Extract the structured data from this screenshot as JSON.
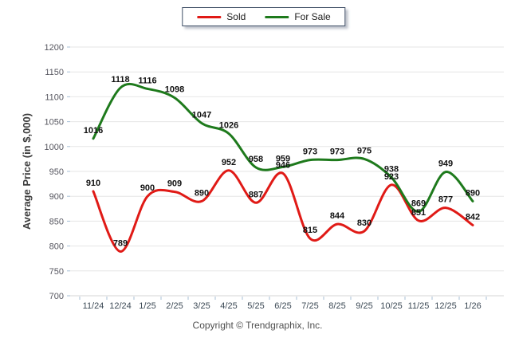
{
  "chart_data": {
    "type": "line",
    "x": [
      "11/24",
      "12/24",
      "1/25",
      "2/25",
      "3/25",
      "4/25",
      "5/25",
      "6/25",
      "7/25",
      "8/25",
      "9/25",
      "10/25",
      "11/25",
      "12/25",
      "1/26"
    ],
    "series": [
      {
        "name": "Sold",
        "color": "#e01a16",
        "values": [
          910,
          789,
          900,
          909,
          890,
          952,
          887,
          946,
          815,
          844,
          830,
          923,
          851,
          877,
          842
        ]
      },
      {
        "name": "For Sale",
        "color": "#1e7a1c",
        "values": [
          1016,
          1118,
          1116,
          1098,
          1047,
          1026,
          958,
          959,
          973,
          973,
          975,
          938,
          869,
          949,
          890
        ]
      }
    ],
    "title": "",
    "xlabel": "",
    "ylabel": "Average Price (in $,000)",
    "ylim": [
      700,
      1200
    ],
    "ytick_step": 50,
    "grid": true,
    "data_labels": true,
    "legend_position": "top-center",
    "grid_color": "#e6e6e6",
    "axis_color": "#d4d4d4",
    "tick_mark_color": "#a7bfd6"
  },
  "footer": {
    "copyright": "Copyright © Trendgraphix, Inc."
  }
}
